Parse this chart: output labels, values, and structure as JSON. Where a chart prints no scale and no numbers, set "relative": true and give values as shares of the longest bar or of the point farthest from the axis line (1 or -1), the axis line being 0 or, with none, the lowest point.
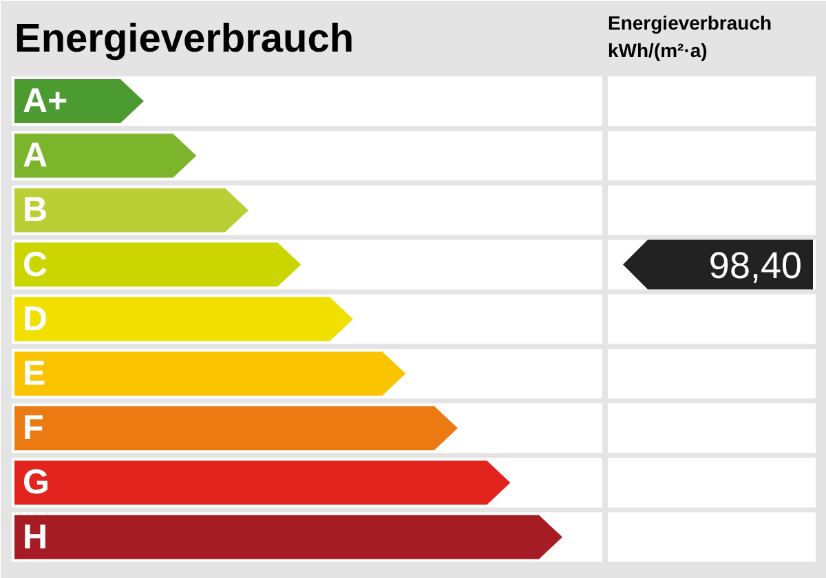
{
  "chart_data": {
    "type": "bar",
    "orientation": "horizontal",
    "relative": true,
    "title": "Energieverbrauch",
    "values": [
      0.236,
      0.332,
      0.427,
      0.523,
      0.618,
      0.714,
      0.809,
      0.905,
      1
    ],
    "categories": [
      "A+",
      "A",
      "B",
      "C",
      "D",
      "E",
      "F",
      "G",
      "H"
    ],
    "colors": [
      "#4c9b30",
      "#7cb42b",
      "#b9cf35",
      "#cbd500",
      "#f1df00",
      "#fbc400",
      "#ec7a13",
      "#e2231e",
      "#a51c24"
    ],
    "annotations": [
      "Energieverbrauch\nkWh/(m²·a)",
      "98,40"
    ]
  }
}
